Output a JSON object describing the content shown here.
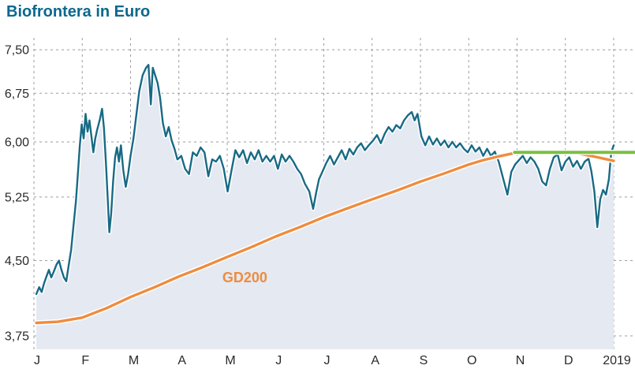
{
  "title": "Biofrontera in Euro",
  "colors": {
    "title": "#0b688e",
    "price_line": "#186a85",
    "price_area": "#e4e9f2",
    "gd200": "#ef8c3e",
    "signal": "#7cbe42",
    "grid": "#9b9ba3",
    "axis_text": "#2a2a2e",
    "halo": "#ffffff"
  },
  "chart_data": {
    "type": "line",
    "title": "Biofrontera in Euro",
    "currency": "Euro",
    "y_scale": "log",
    "ylim": [
      3.63,
      7.72
    ],
    "grid": true,
    "legend_position": "inline-label",
    "y_ticks": [
      {
        "value": 7.5,
        "label": "7,50"
      },
      {
        "value": 6.75,
        "label": "6,75"
      },
      {
        "value": 6.0,
        "label": "6,00"
      },
      {
        "value": 5.25,
        "label": "5,25"
      },
      {
        "value": 4.5,
        "label": "4,50"
      },
      {
        "value": 3.75,
        "label": "3,75"
      }
    ],
    "x_unit": "months Jan-Dec, ending at year label 2019",
    "x_ticks": [
      {
        "pos": 0,
        "label": "J"
      },
      {
        "pos": 1,
        "label": "F"
      },
      {
        "pos": 2,
        "label": "M"
      },
      {
        "pos": 3,
        "label": "A"
      },
      {
        "pos": 4,
        "label": "M"
      },
      {
        "pos": 5,
        "label": "J"
      },
      {
        "pos": 6,
        "label": "J"
      },
      {
        "pos": 7,
        "label": "A"
      },
      {
        "pos": 8,
        "label": "S"
      },
      {
        "pos": 9,
        "label": "O"
      },
      {
        "pos": 10,
        "label": "N"
      },
      {
        "pos": 11,
        "label": "D"
      },
      {
        "pos": 12,
        "label": "2019"
      }
    ],
    "annotations": [
      {
        "text": "GD200",
        "x": 3.9,
        "value": 4.27,
        "color_key": "gd200"
      }
    ],
    "series": [
      {
        "name": "Biofrontera share price",
        "type": "area-line",
        "color_key": "price_line",
        "fill_key": "price_area",
        "points": [
          [
            0.05,
            4.15
          ],
          [
            0.11,
            4.22
          ],
          [
            0.16,
            4.17
          ],
          [
            0.21,
            4.26
          ],
          [
            0.26,
            4.33
          ],
          [
            0.31,
            4.4
          ],
          [
            0.36,
            4.32
          ],
          [
            0.41,
            4.38
          ],
          [
            0.47,
            4.46
          ],
          [
            0.52,
            4.5
          ],
          [
            0.57,
            4.4
          ],
          [
            0.62,
            4.32
          ],
          [
            0.67,
            4.28
          ],
          [
            0.72,
            4.45
          ],
          [
            0.77,
            4.62
          ],
          [
            0.82,
            4.9
          ],
          [
            0.87,
            5.2
          ],
          [
            0.91,
            5.55
          ],
          [
            0.95,
            5.95
          ],
          [
            0.99,
            6.26
          ],
          [
            1.03,
            6.05
          ],
          [
            1.07,
            6.42
          ],
          [
            1.11,
            6.15
          ],
          [
            1.15,
            6.32
          ],
          [
            1.19,
            6.08
          ],
          [
            1.23,
            5.85
          ],
          [
            1.27,
            6.05
          ],
          [
            1.31,
            6.18
          ],
          [
            1.36,
            6.32
          ],
          [
            1.41,
            6.5
          ],
          [
            1.45,
            6.2
          ],
          [
            1.49,
            5.7
          ],
          [
            1.53,
            5.2
          ],
          [
            1.56,
            4.82
          ],
          [
            1.6,
            5.05
          ],
          [
            1.64,
            5.45
          ],
          [
            1.68,
            5.78
          ],
          [
            1.72,
            5.92
          ],
          [
            1.76,
            5.72
          ],
          [
            1.8,
            5.95
          ],
          [
            1.85,
            5.6
          ],
          [
            1.9,
            5.38
          ],
          [
            1.95,
            5.55
          ],
          [
            2.0,
            5.8
          ],
          [
            2.06,
            6.05
          ],
          [
            2.12,
            6.4
          ],
          [
            2.18,
            6.78
          ],
          [
            2.25,
            7.05
          ],
          [
            2.32,
            7.18
          ],
          [
            2.37,
            7.23
          ],
          [
            2.42,
            6.57
          ],
          [
            2.46,
            7.18
          ],
          [
            2.51,
            7.05
          ],
          [
            2.56,
            6.92
          ],
          [
            2.61,
            6.68
          ],
          [
            2.67,
            6.28
          ],
          [
            2.73,
            6.08
          ],
          [
            2.79,
            6.22
          ],
          [
            2.85,
            6.02
          ],
          [
            2.91,
            5.9
          ],
          [
            2.97,
            5.75
          ],
          [
            3.05,
            5.8
          ],
          [
            3.13,
            5.62
          ],
          [
            3.21,
            5.55
          ],
          [
            3.29,
            5.85
          ],
          [
            3.37,
            5.8
          ],
          [
            3.45,
            5.92
          ],
          [
            3.53,
            5.85
          ],
          [
            3.61,
            5.52
          ],
          [
            3.69,
            5.75
          ],
          [
            3.77,
            5.72
          ],
          [
            3.85,
            5.8
          ],
          [
            3.93,
            5.62
          ],
          [
            4.01,
            5.32
          ],
          [
            4.09,
            5.6
          ],
          [
            4.17,
            5.88
          ],
          [
            4.25,
            5.78
          ],
          [
            4.33,
            5.88
          ],
          [
            4.41,
            5.7
          ],
          [
            4.49,
            5.85
          ],
          [
            4.57,
            5.75
          ],
          [
            4.65,
            5.88
          ],
          [
            4.73,
            5.72
          ],
          [
            4.81,
            5.8
          ],
          [
            4.89,
            5.72
          ],
          [
            4.97,
            5.8
          ],
          [
            5.05,
            5.62
          ],
          [
            5.13,
            5.82
          ],
          [
            5.21,
            5.72
          ],
          [
            5.29,
            5.8
          ],
          [
            5.37,
            5.72
          ],
          [
            5.45,
            5.62
          ],
          [
            5.53,
            5.55
          ],
          [
            5.61,
            5.42
          ],
          [
            5.7,
            5.32
          ],
          [
            5.78,
            5.1
          ],
          [
            5.84,
            5.3
          ],
          [
            5.9,
            5.48
          ],
          [
            5.97,
            5.58
          ],
          [
            6.05,
            5.7
          ],
          [
            6.13,
            5.8
          ],
          [
            6.21,
            5.68
          ],
          [
            6.29,
            5.78
          ],
          [
            6.37,
            5.88
          ],
          [
            6.45,
            5.75
          ],
          [
            6.53,
            5.9
          ],
          [
            6.61,
            5.82
          ],
          [
            6.69,
            5.92
          ],
          [
            6.77,
            5.98
          ],
          [
            6.85,
            5.88
          ],
          [
            6.93,
            5.95
          ],
          [
            7.02,
            6.02
          ],
          [
            7.1,
            6.1
          ],
          [
            7.18,
            5.98
          ],
          [
            7.26,
            6.12
          ],
          [
            7.34,
            6.22
          ],
          [
            7.42,
            6.15
          ],
          [
            7.5,
            6.25
          ],
          [
            7.58,
            6.2
          ],
          [
            7.66,
            6.32
          ],
          [
            7.74,
            6.4
          ],
          [
            7.82,
            6.45
          ],
          [
            7.88,
            6.32
          ],
          [
            7.94,
            6.42
          ],
          [
            8.02,
            6.08
          ],
          [
            8.1,
            5.95
          ],
          [
            8.18,
            6.08
          ],
          [
            8.26,
            5.96
          ],
          [
            8.34,
            6.05
          ],
          [
            8.42,
            5.95
          ],
          [
            8.5,
            6.02
          ],
          [
            8.58,
            5.92
          ],
          [
            8.66,
            6.0
          ],
          [
            8.74,
            5.92
          ],
          [
            8.82,
            5.98
          ],
          [
            8.9,
            5.9
          ],
          [
            8.98,
            5.85
          ],
          [
            9.06,
            5.95
          ],
          [
            9.14,
            5.86
          ],
          [
            9.22,
            5.92
          ],
          [
            9.3,
            5.8
          ],
          [
            9.38,
            5.9
          ],
          [
            9.46,
            5.8
          ],
          [
            9.54,
            5.86
          ],
          [
            9.62,
            5.72
          ],
          [
            9.7,
            5.52
          ],
          [
            9.8,
            5.28
          ],
          [
            9.88,
            5.58
          ],
          [
            9.96,
            5.68
          ],
          [
            10.04,
            5.74
          ],
          [
            10.12,
            5.8
          ],
          [
            10.2,
            5.7
          ],
          [
            10.28,
            5.78
          ],
          [
            10.36,
            5.72
          ],
          [
            10.44,
            5.62
          ],
          [
            10.52,
            5.45
          ],
          [
            10.6,
            5.4
          ],
          [
            10.68,
            5.62
          ],
          [
            10.76,
            5.78
          ],
          [
            10.84,
            5.82
          ],
          [
            10.92,
            5.6
          ],
          [
            11.0,
            5.72
          ],
          [
            11.08,
            5.78
          ],
          [
            11.16,
            5.65
          ],
          [
            11.24,
            5.73
          ],
          [
            11.32,
            5.62
          ],
          [
            11.4,
            5.72
          ],
          [
            11.48,
            5.76
          ],
          [
            11.54,
            5.58
          ],
          [
            11.6,
            5.32
          ],
          [
            11.66,
            4.88
          ],
          [
            11.72,
            5.22
          ],
          [
            11.78,
            5.34
          ],
          [
            11.84,
            5.28
          ],
          [
            11.9,
            5.48
          ],
          [
            11.95,
            5.85
          ],
          [
            12.0,
            5.95
          ]
        ]
      },
      {
        "name": "GD200",
        "type": "line",
        "color_key": "gd200",
        "points": [
          [
            0.05,
            3.87
          ],
          [
            0.5,
            3.88
          ],
          [
            1.0,
            3.92
          ],
          [
            1.5,
            4.01
          ],
          [
            2.0,
            4.12
          ],
          [
            2.5,
            4.22
          ],
          [
            3.0,
            4.33
          ],
          [
            3.5,
            4.43
          ],
          [
            4.0,
            4.54
          ],
          [
            4.5,
            4.65
          ],
          [
            5.0,
            4.77
          ],
          [
            5.5,
            4.88
          ],
          [
            6.0,
            5.0
          ],
          [
            6.5,
            5.11
          ],
          [
            7.0,
            5.22
          ],
          [
            7.5,
            5.33
          ],
          [
            8.0,
            5.45
          ],
          [
            8.5,
            5.56
          ],
          [
            9.0,
            5.68
          ],
          [
            9.3,
            5.74
          ],
          [
            9.6,
            5.79
          ],
          [
            9.95,
            5.84
          ],
          [
            10.3,
            5.86
          ],
          [
            10.7,
            5.86
          ],
          [
            11.0,
            5.85
          ],
          [
            11.3,
            5.83
          ],
          [
            11.6,
            5.79
          ],
          [
            11.8,
            5.76
          ],
          [
            12.0,
            5.73
          ]
        ]
      },
      {
        "name": "green signal line",
        "type": "line",
        "color_key": "signal",
        "points": [
          [
            9.95,
            5.85
          ],
          [
            12.44,
            5.85
          ]
        ]
      }
    ]
  }
}
